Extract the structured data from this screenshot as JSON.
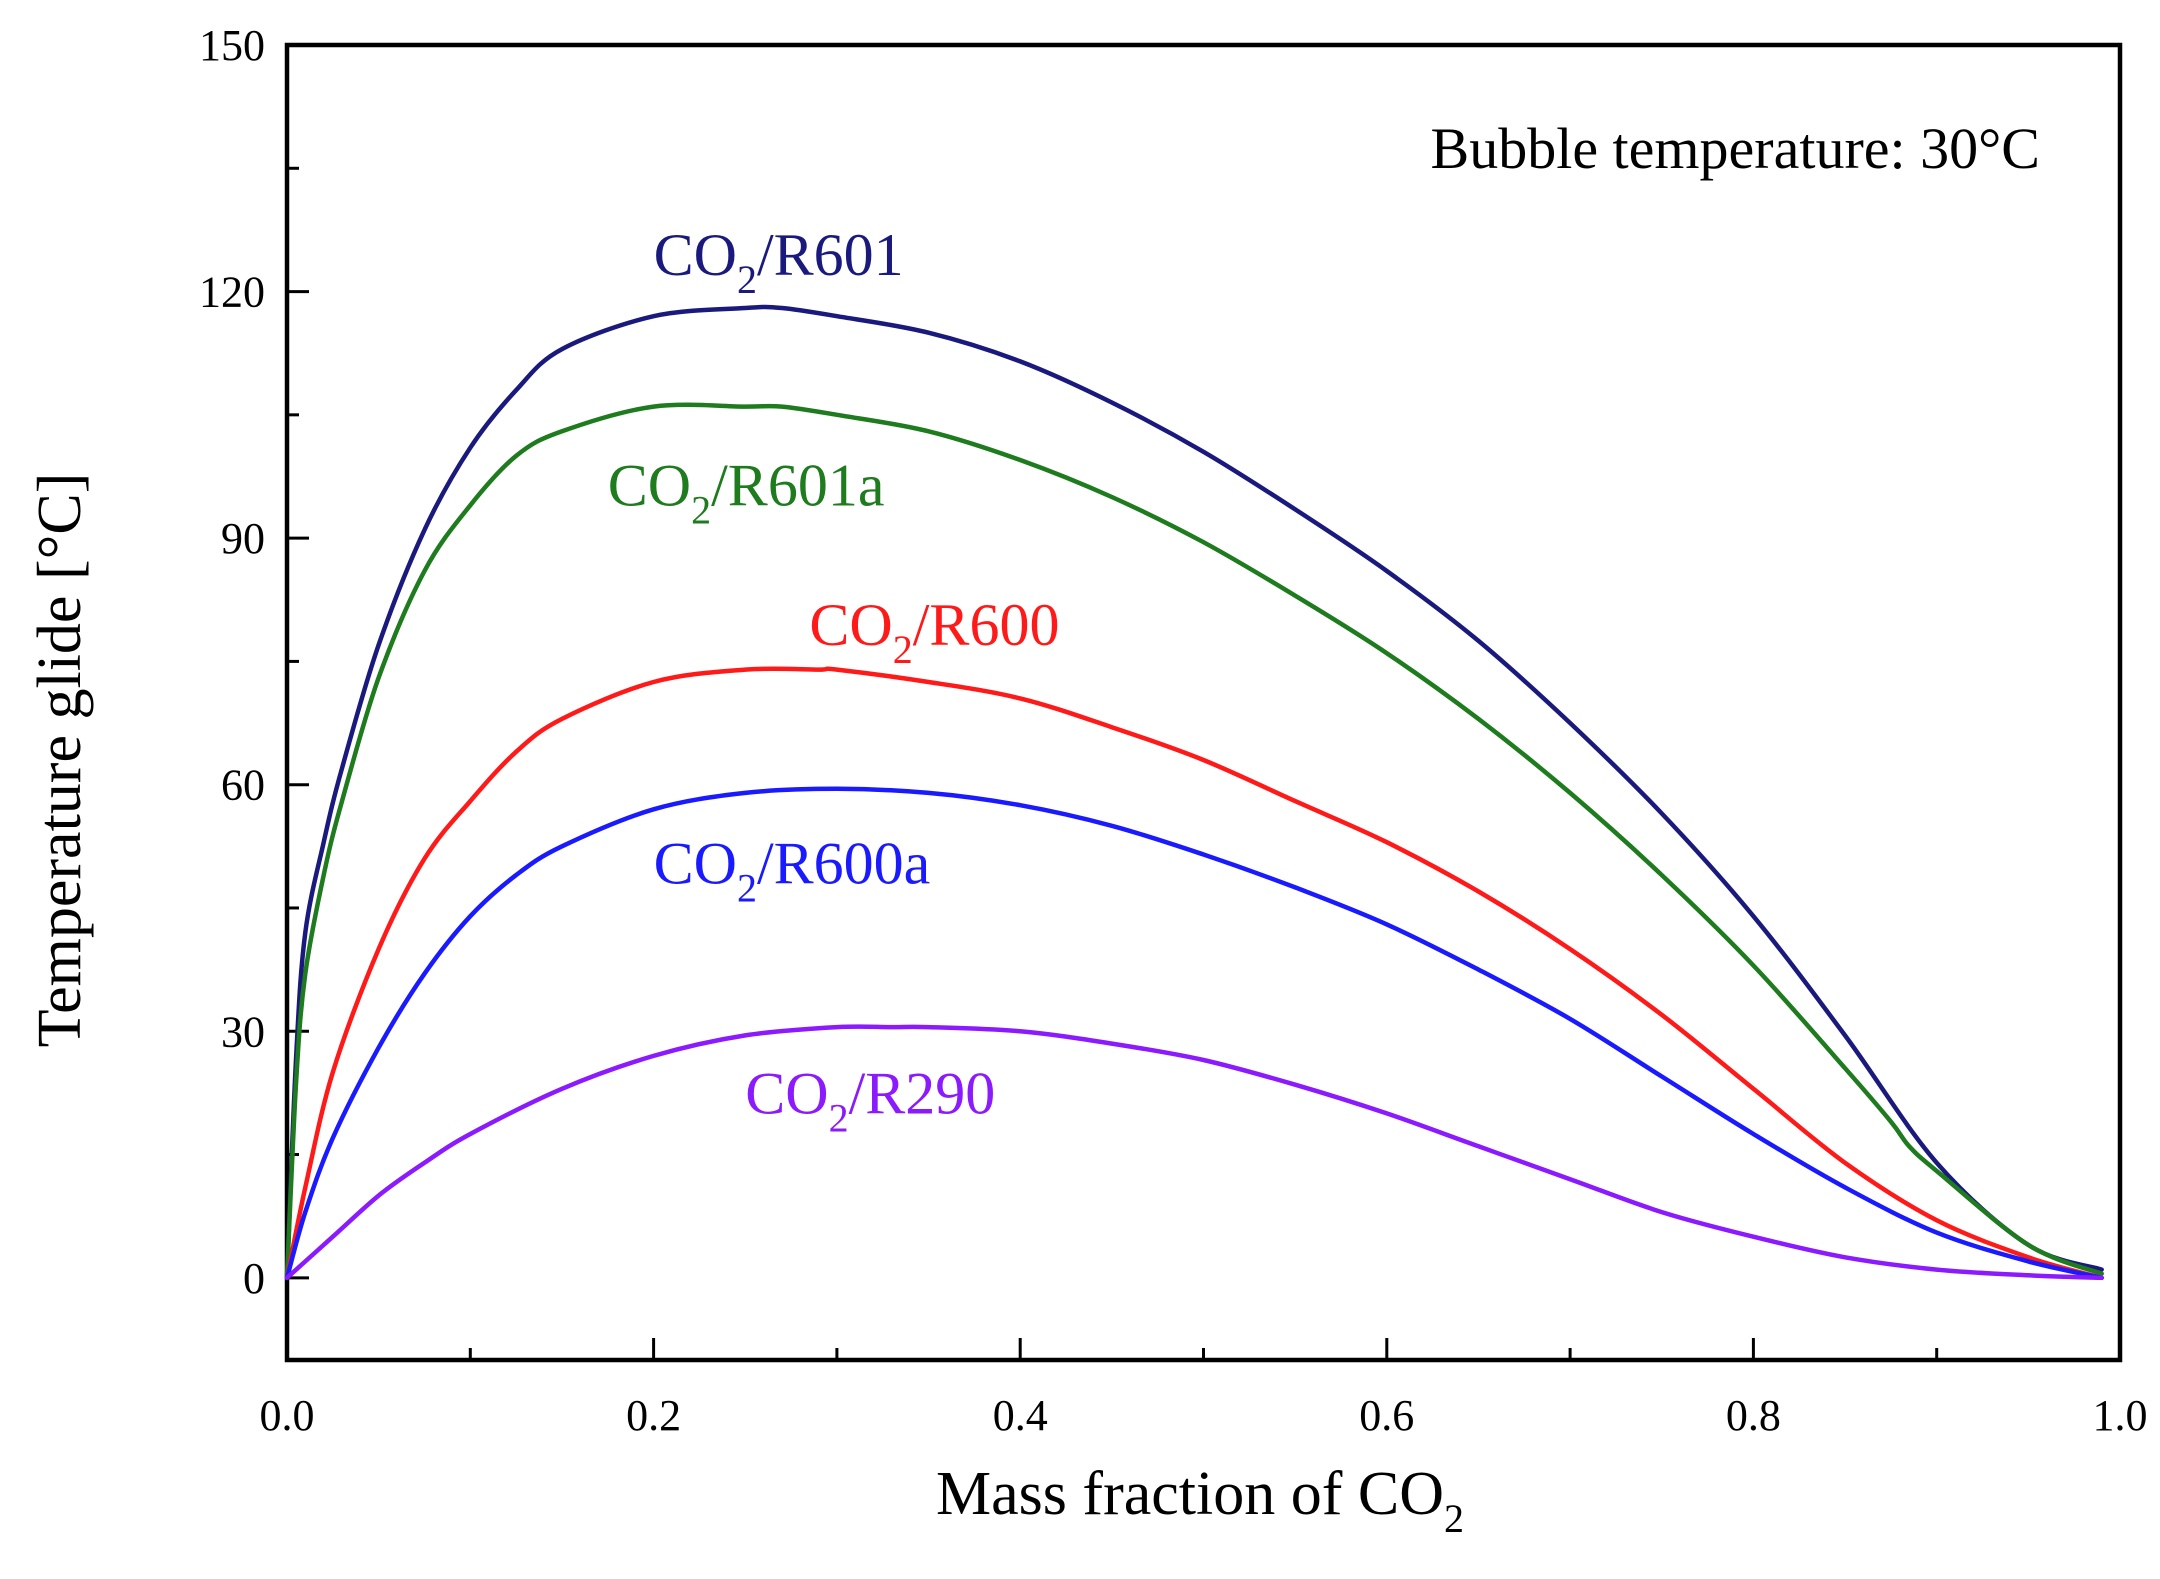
{
  "chart_data": {
    "type": "line",
    "title": "",
    "annotation": "Bubble temperature: 30°C",
    "xlabel": {
      "main": "Mass fraction of CO",
      "sub": "2"
    },
    "ylabel": "Temperature glide [°C]",
    "xlim": [
      0.0,
      1.0
    ],
    "ylim": [
      -10,
      150
    ],
    "xticks": [
      0.0,
      0.2,
      0.4,
      0.6,
      0.8,
      1.0
    ],
    "xtick_labels": [
      "0.0",
      "0.2",
      "0.4",
      "0.6",
      "0.8",
      "1.0"
    ],
    "yticks": [
      0,
      30,
      60,
      90,
      120,
      150
    ],
    "ytick_labels": [
      "0",
      "30",
      "60",
      "90",
      "120",
      "150"
    ],
    "grid": false,
    "series": [
      {
        "name": "CO2/R601",
        "label_main": "CO",
        "label_sub": "2",
        "label_rest": "/R601",
        "color": "#1a1a7e",
        "label_at": [
          0.2,
          122
        ],
        "x": [
          0.0,
          0.005,
          0.01,
          0.02,
          0.03,
          0.05,
          0.075,
          0.1,
          0.125,
          0.15,
          0.2,
          0.25,
          0.27,
          0.3,
          0.35,
          0.4,
          0.45,
          0.5,
          0.55,
          0.6,
          0.65,
          0.7,
          0.75,
          0.8,
          0.85,
          0.9,
          0.95,
          0.99
        ],
        "y": [
          0,
          27,
          42,
          53,
          62,
          77,
          91,
          101,
          108,
          113,
          117,
          118,
          118,
          117,
          115,
          111.5,
          106.5,
          100.5,
          93.5,
          86,
          77.5,
          67.5,
          56.5,
          44,
          29.5,
          14,
          4,
          1
        ]
      },
      {
        "name": "CO2/R601a",
        "label_main": "CO",
        "label_sub": "2",
        "label_rest": "/R601a",
        "color": "#1e7b1e",
        "label_at": [
          0.175,
          94
        ],
        "x": [
          0.0,
          0.005,
          0.01,
          0.02,
          0.03,
          0.05,
          0.075,
          0.1,
          0.125,
          0.15,
          0.2,
          0.25,
          0.27,
          0.3,
          0.35,
          0.4,
          0.45,
          0.5,
          0.55,
          0.6,
          0.65,
          0.7,
          0.75,
          0.8,
          0.85,
          0.875,
          0.885,
          0.9,
          0.95,
          0.99
        ],
        "y": [
          0,
          24,
          37,
          49,
          58,
          73,
          86,
          94,
          100,
          103,
          106,
          106,
          106,
          105,
          103,
          99.5,
          95,
          89.5,
          83,
          76,
          68,
          59,
          49,
          38,
          25.5,
          19,
          16,
          13,
          4,
          0.5
        ]
      },
      {
        "name": "CO2/R600",
        "label_main": "CO",
        "label_sub": "2",
        "label_rest": "/R600",
        "color": "#ff1a1a",
        "label_at": [
          0.285,
          77
        ],
        "x": [
          0.0,
          0.01,
          0.025,
          0.05,
          0.075,
          0.1,
          0.125,
          0.15,
          0.2,
          0.25,
          0.29,
          0.3,
          0.35,
          0.4,
          0.45,
          0.5,
          0.55,
          0.6,
          0.65,
          0.7,
          0.75,
          0.8,
          0.85,
          0.9,
          0.95,
          0.99
        ],
        "y": [
          0,
          11,
          25,
          40,
          51,
          58,
          64,
          68,
          72.5,
          74,
          74,
          74,
          72.5,
          70.5,
          67,
          63,
          58,
          53,
          47,
          40,
          32,
          23,
          14,
          7,
          2.5,
          0
        ]
      },
      {
        "name": "CO2/R600a",
        "label_main": "CO",
        "label_sub": "2",
        "label_rest": "/R600a",
        "color": "#1a1aff",
        "label_at": [
          0.2,
          48
        ],
        "x": [
          0.0,
          0.01,
          0.025,
          0.05,
          0.075,
          0.1,
          0.125,
          0.15,
          0.2,
          0.25,
          0.3,
          0.35,
          0.4,
          0.45,
          0.5,
          0.55,
          0.6,
          0.65,
          0.7,
          0.75,
          0.8,
          0.85,
          0.9,
          0.95,
          0.99
        ],
        "y": [
          0,
          8,
          17,
          28,
          37,
          44,
          49,
          52.5,
          57,
          59,
          59.5,
          59,
          57.5,
          55,
          51.5,
          47.5,
          43,
          37.5,
          31.5,
          24.5,
          17.5,
          11,
          5.5,
          2,
          0
        ]
      },
      {
        "name": "CO2/R290",
        "label_main": "CO",
        "label_sub": "2",
        "label_rest": "/R290",
        "color": "#8b1aff",
        "label_at": [
          0.25,
          20
        ],
        "x": [
          0.0,
          0.025,
          0.05,
          0.075,
          0.1,
          0.15,
          0.2,
          0.25,
          0.3,
          0.33,
          0.35,
          0.4,
          0.45,
          0.5,
          0.55,
          0.6,
          0.65,
          0.7,
          0.75,
          0.8,
          0.85,
          0.9,
          0.95,
          0.99
        ],
        "y": [
          0,
          5,
          10,
          14,
          17.5,
          23,
          27,
          29.5,
          30.5,
          30.5,
          30.5,
          30,
          28.5,
          26.5,
          23.5,
          20,
          16,
          12,
          8,
          5,
          2.5,
          1,
          0.3,
          0
        ]
      }
    ]
  }
}
